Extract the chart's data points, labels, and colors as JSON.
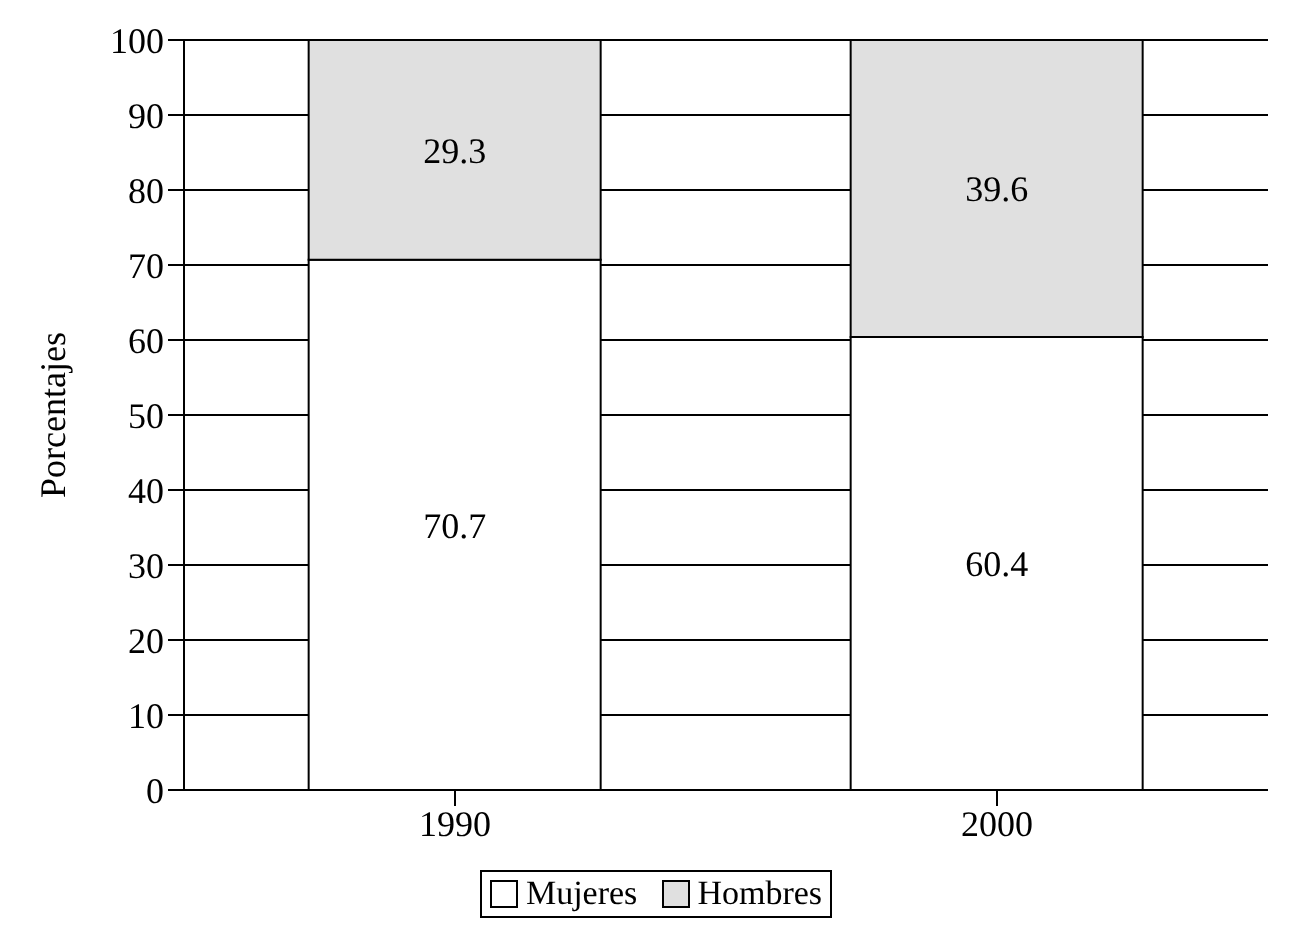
{
  "chart_data": {
    "type": "bar",
    "ylabel": "Porcentajes",
    "categories": [
      "1990",
      "2000"
    ],
    "stacked": true,
    "series": [
      {
        "name": "Mujeres",
        "color": "#ffffff",
        "values": [
          70.7,
          60.4
        ]
      },
      {
        "name": "Hombres",
        "color": "#e0e0e0",
        "values": [
          29.3,
          39.6
        ]
      }
    ],
    "ylim": [
      0,
      100
    ],
    "yticks": [
      0,
      10,
      20,
      30,
      40,
      50,
      60,
      70,
      80,
      90,
      100
    ],
    "grid": "y",
    "legend": "bottom",
    "data_labels": true
  }
}
